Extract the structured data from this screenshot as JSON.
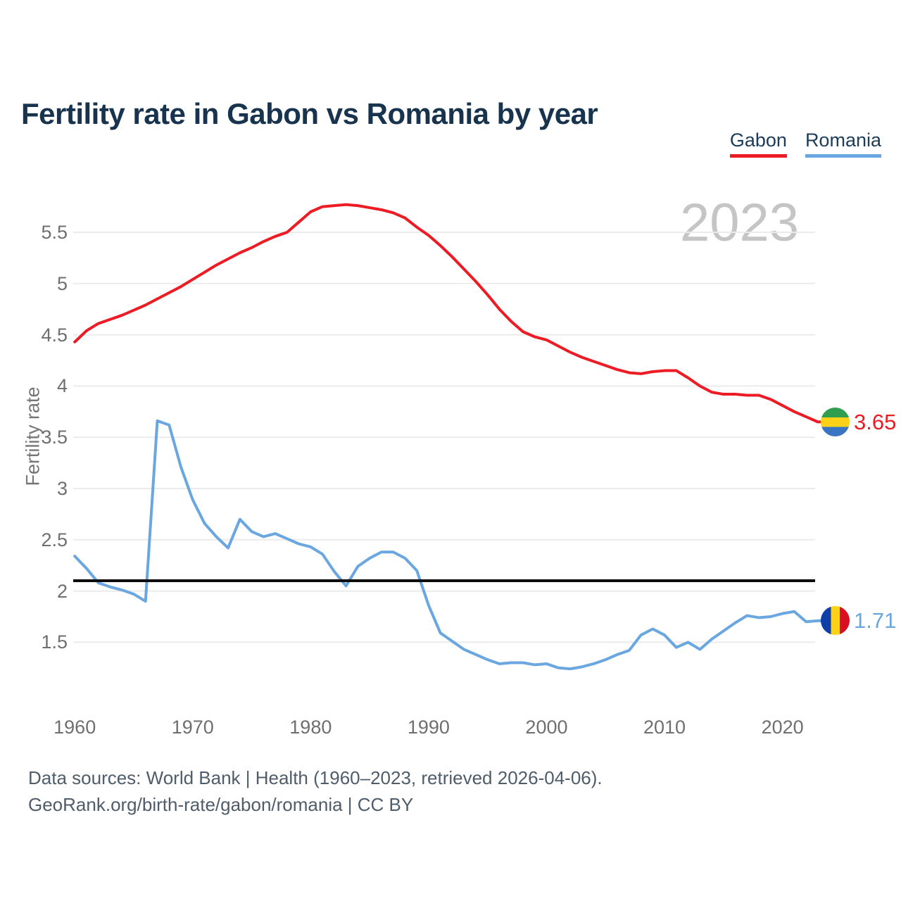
{
  "page": {
    "title": "Fertility rate in Gabon vs Romania by year"
  },
  "legend": {
    "items": [
      {
        "label": "Gabon",
        "color": "#ed1c24"
      },
      {
        "label": "Romania",
        "color": "#6aa7e0"
      }
    ]
  },
  "watermark": "2023",
  "y_axis": {
    "title": "Fertility rate",
    "tick_labels": [
      "5.5",
      "5",
      "4.5",
      "4",
      "3.5",
      "3",
      "2.5",
      "2",
      "1.5"
    ]
  },
  "x_axis": {
    "tick_labels": [
      "1960",
      "1970",
      "1980",
      "1990",
      "2000",
      "2010",
      "2020"
    ]
  },
  "end_labels": {
    "gabon": {
      "value": "3.65",
      "icon": "gabon-flag-icon"
    },
    "romania": {
      "value": "1.71",
      "icon": "romania-flag-icon"
    }
  },
  "footer": {
    "line1": "Data sources: World Bank | Health (1960–2023, retrieved 2026-04-06).",
    "line2": "GeoRank.org/birth-rate/gabon/romania | CC BY"
  },
  "colors": {
    "gabon_line": "#ed1c24",
    "romania_line": "#6aa7e0",
    "grid": "#ebebeb",
    "replacement_line": "#0d0d0d",
    "title_text": "#17334e",
    "axis_text": "#6f6f6f",
    "watermark_text": "#c5c5c5",
    "footer_text": "#4f5d6b"
  },
  "chart_data": {
    "type": "line",
    "title": "Fertility rate in Gabon vs Romania by year",
    "xlabel": "",
    "ylabel": "Fertility rate",
    "x_range": [
      1960,
      2023
    ],
    "ylim": [
      1.1,
      5.9
    ],
    "y_ticks": [
      5.5,
      5,
      4.5,
      4,
      3.5,
      3,
      2.5,
      2,
      1.5
    ],
    "x_ticks": [
      1960,
      1970,
      1980,
      1990,
      2000,
      2010,
      2020
    ],
    "grid": "horizontal",
    "legend_position": "top-right",
    "replacement_level": {
      "value": 2.1,
      "style": "solid black horizontal line"
    },
    "x": [
      1960,
      1961,
      1962,
      1963,
      1964,
      1965,
      1966,
      1967,
      1968,
      1969,
      1970,
      1971,
      1972,
      1973,
      1974,
      1975,
      1976,
      1977,
      1978,
      1979,
      1980,
      1981,
      1982,
      1983,
      1984,
      1985,
      1986,
      1987,
      1988,
      1989,
      1990,
      1991,
      1992,
      1993,
      1994,
      1995,
      1996,
      1997,
      1998,
      1999,
      2000,
      2001,
      2002,
      2003,
      2004,
      2005,
      2006,
      2007,
      2008,
      2009,
      2010,
      2011,
      2012,
      2013,
      2014,
      2015,
      2016,
      2017,
      2018,
      2019,
      2020,
      2021,
      2022,
      2023
    ],
    "series": [
      {
        "name": "Gabon",
        "color": "#ed1c24",
        "end_label": "3.65",
        "values": [
          4.43,
          4.54,
          4.61,
          4.65,
          4.69,
          4.74,
          4.79,
          4.85,
          4.91,
          4.97,
          5.04,
          5.11,
          5.18,
          5.24,
          5.3,
          5.35,
          5.41,
          5.46,
          5.5,
          5.6,
          5.7,
          5.75,
          5.76,
          5.77,
          5.76,
          5.74,
          5.72,
          5.69,
          5.64,
          5.55,
          5.47,
          5.37,
          5.26,
          5.14,
          5.02,
          4.89,
          4.75,
          4.63,
          4.53,
          4.48,
          4.45,
          4.39,
          4.33,
          4.28,
          4.24,
          4.2,
          4.16,
          4.13,
          4.12,
          4.14,
          4.15,
          4.15,
          4.08,
          4.0,
          3.94,
          3.92,
          3.92,
          3.91,
          3.91,
          3.87,
          3.81,
          3.75,
          3.7,
          3.65
        ]
      },
      {
        "name": "Romania",
        "color": "#6aa7e0",
        "end_label": "1.71",
        "values": [
          2.34,
          2.22,
          2.08,
          2.04,
          2.01,
          1.97,
          1.9,
          3.66,
          3.62,
          3.21,
          2.89,
          2.66,
          2.53,
          2.42,
          2.7,
          2.58,
          2.53,
          2.56,
          2.51,
          2.46,
          2.43,
          2.36,
          2.19,
          2.05,
          2.24,
          2.32,
          2.38,
          2.38,
          2.32,
          2.2,
          1.86,
          1.59,
          1.51,
          1.43,
          1.38,
          1.33,
          1.29,
          1.3,
          1.3,
          1.28,
          1.29,
          1.25,
          1.24,
          1.26,
          1.29,
          1.33,
          1.38,
          1.42,
          1.57,
          1.63,
          1.57,
          1.45,
          1.5,
          1.43,
          1.53,
          1.61,
          1.69,
          1.76,
          1.74,
          1.75,
          1.78,
          1.8,
          1.7,
          1.71
        ]
      }
    ]
  }
}
